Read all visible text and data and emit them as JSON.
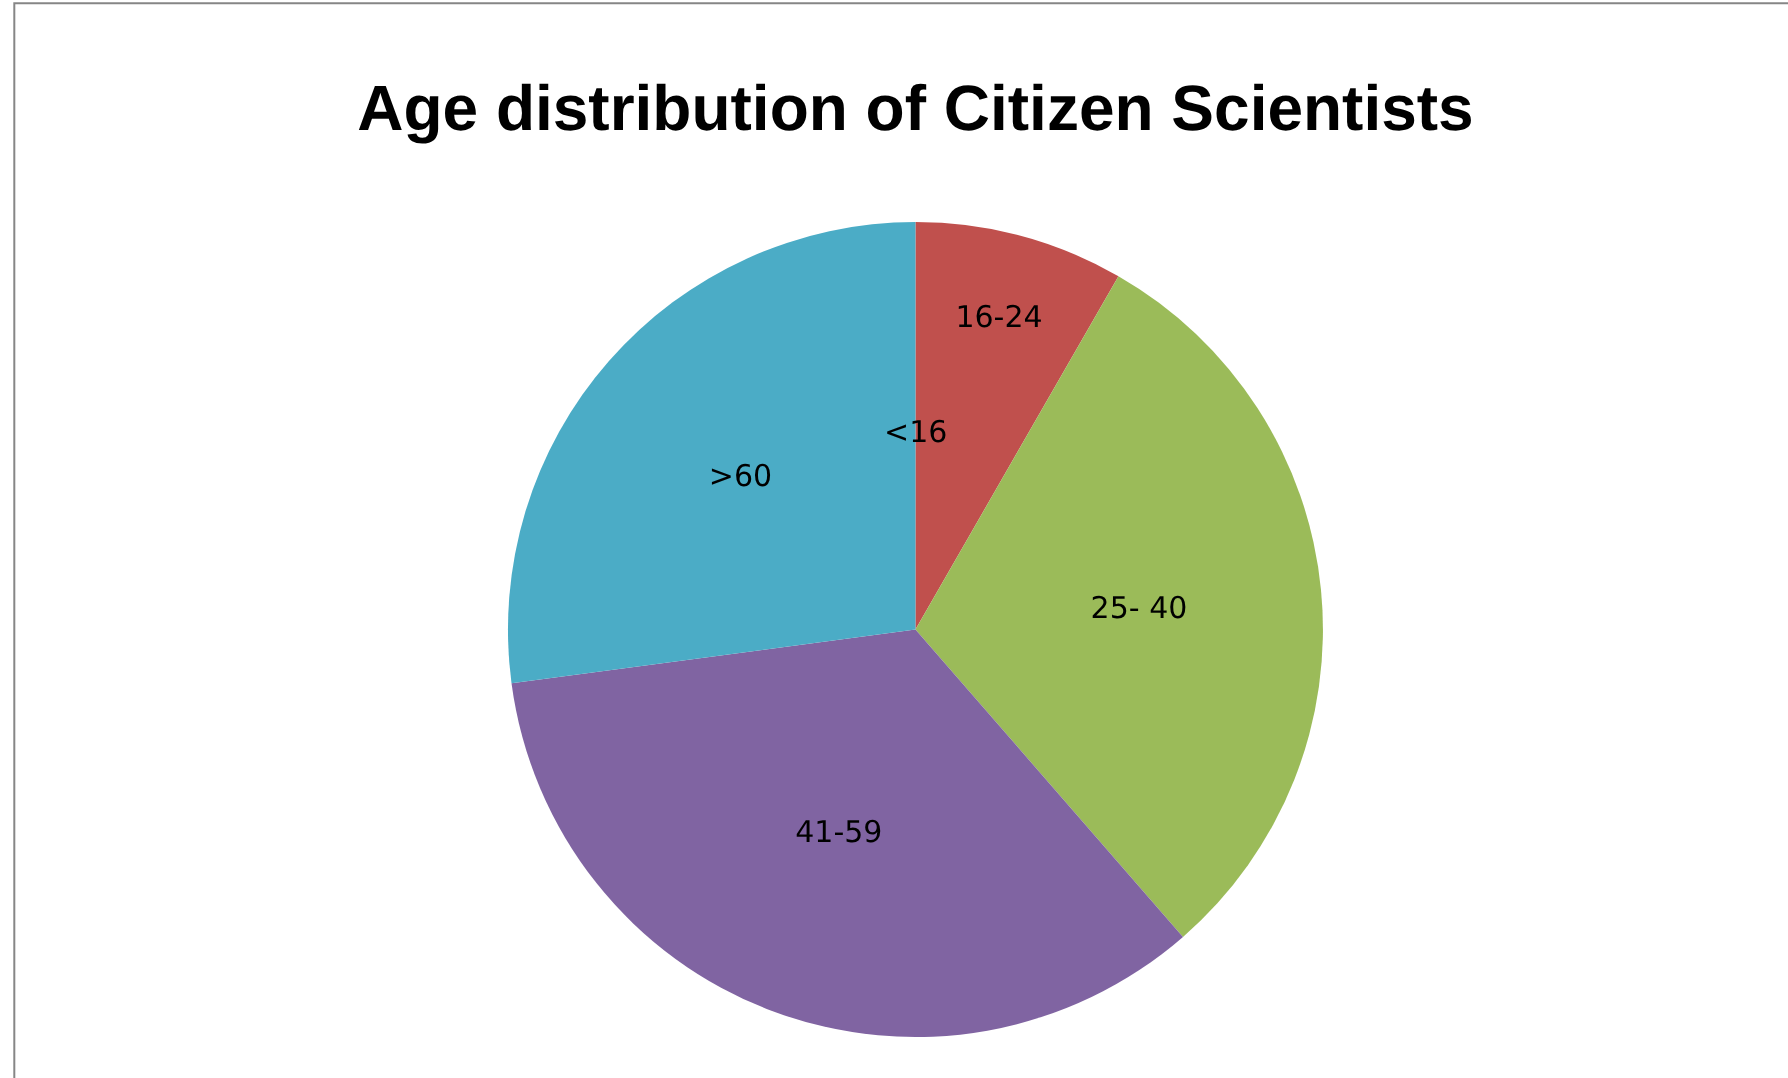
{
  "chart_data": {
    "type": "pie",
    "title": "Age distribution of Citizen Scientists",
    "categories": [
      "<16",
      "16-24",
      "25- 40",
      "41-59",
      ">60"
    ],
    "values": [
      0,
      8.3,
      30.3,
      34.3,
      27.1
    ],
    "colors": [
      "#4f81bd",
      "#c0504d",
      "#9bbb59",
      "#8064a2",
      "#4bacc6"
    ],
    "legend": false
  }
}
